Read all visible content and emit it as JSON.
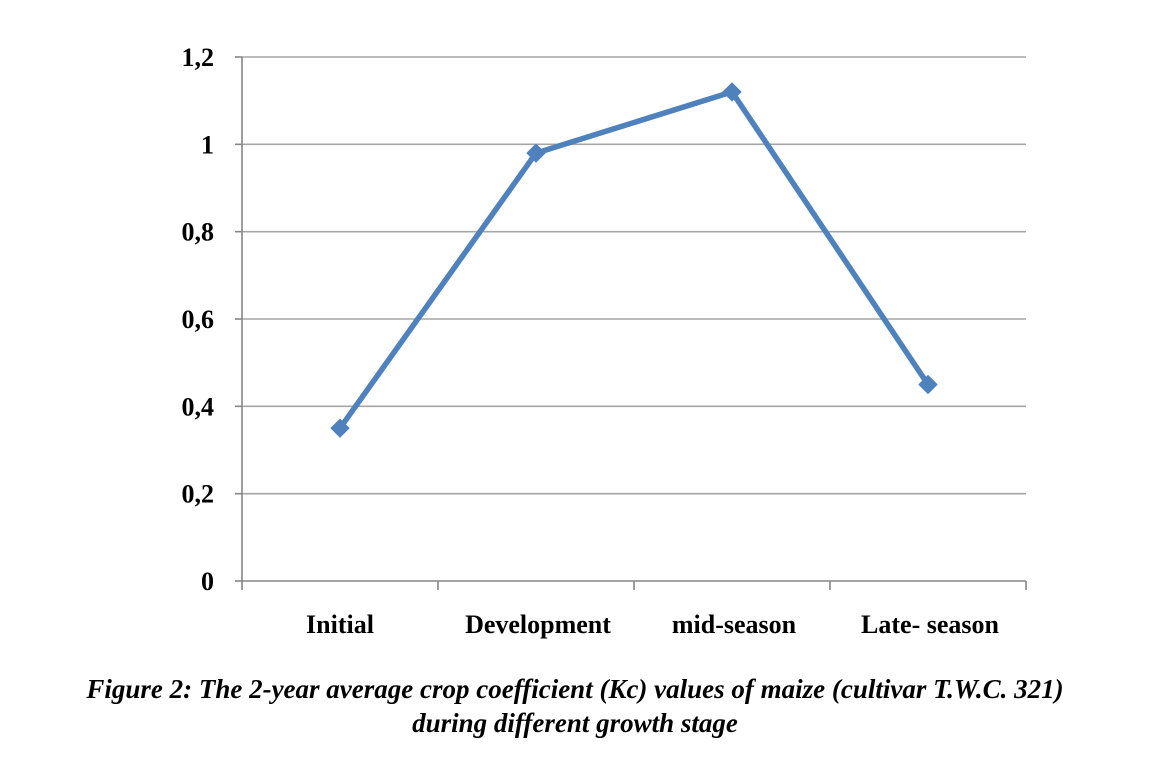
{
  "chart_data": {
    "type": "line",
    "categories": [
      "Initial",
      "Development",
      "mid-season",
      "Late- season"
    ],
    "series": [
      {
        "values": [
          0.35,
          0.98,
          1.12,
          0.45
        ],
        "color": "#4F81BD",
        "marker": "diamond"
      }
    ],
    "ylim": [
      0,
      1.2
    ],
    "yticks": [
      0,
      0.2,
      0.4,
      0.6,
      0.8,
      1,
      1.2
    ],
    "ytick_labels": [
      "0",
      "0,2",
      "0,4",
      "0,6",
      "0,8",
      "1",
      "1,2"
    ],
    "grid": true,
    "grid_color": "#A6A6A6",
    "axis_color": "#868686",
    "legend": "none"
  },
  "caption": {
    "line1": "Figure 2: The 2-year average crop coefficient (Kc) values of maize (cultivar T.W.C. 321)",
    "line2": "during different growth stage"
  }
}
